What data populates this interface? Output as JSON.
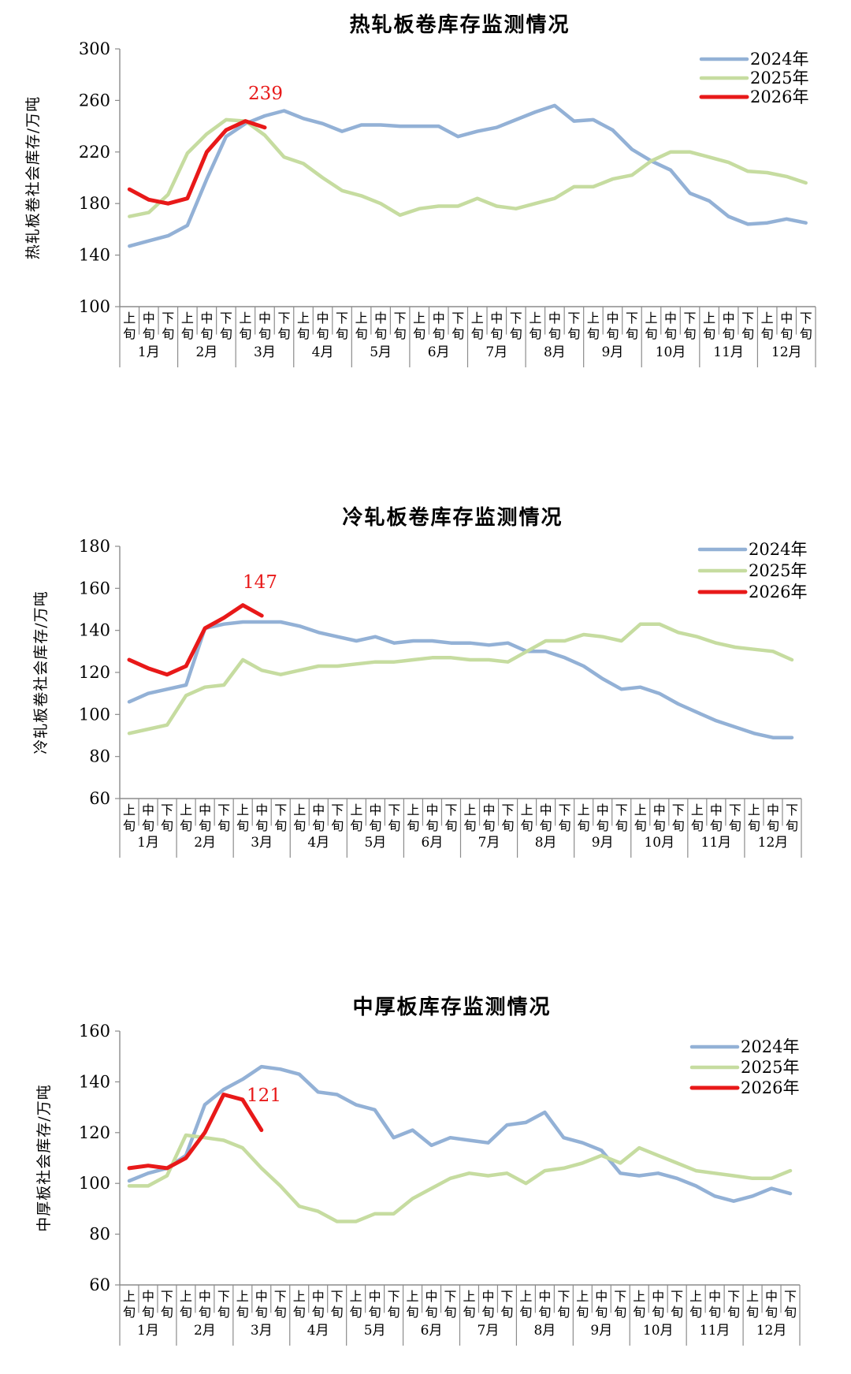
{
  "x_axis": {
    "sub_labels": [
      "上\n旬",
      "中\n旬",
      "下\n旬"
    ],
    "months": [
      "1月",
      "2月",
      "3月",
      "4月",
      "5月",
      "6月",
      "7月",
      "8月",
      "9月",
      "10月",
      "11月",
      "12月"
    ]
  },
  "series_colors": {
    "2024年": "#93b1d6",
    "2025年": "#c6dca0",
    "2026年": "#e81919"
  },
  "chart_data": [
    {
      "type": "line",
      "title": "热轧板卷库存监测情况",
      "ylabel": "热轧板卷社会库存/万吨",
      "ylim": [
        100,
        300
      ],
      "yticks": [
        100,
        140,
        180,
        220,
        260,
        300
      ],
      "grid": false,
      "legend_position": "top-right",
      "callout": {
        "series": "2026年",
        "value": "239"
      },
      "series": [
        {
          "name": "2024年",
          "values": [
            147,
            151,
            155,
            163,
            199,
            232,
            242,
            248,
            252,
            246,
            242,
            236,
            241,
            241,
            240,
            240,
            240,
            232,
            236,
            239,
            245,
            251,
            256,
            244,
            245,
            237,
            222,
            213,
            206,
            188,
            182,
            170,
            164,
            165,
            168,
            165
          ]
        },
        {
          "name": "2025年",
          "values": [
            170,
            173,
            187,
            219,
            234,
            245,
            244,
            233,
            216,
            211,
            200,
            190,
            186,
            180,
            171,
            176,
            178,
            178,
            184,
            178,
            176,
            180,
            184,
            193,
            193,
            199,
            202,
            213,
            220,
            220,
            216,
            212,
            205,
            204,
            201,
            196
          ]
        },
        {
          "name": "2026年",
          "values": [
            191,
            183,
            180,
            184,
            220,
            237,
            244,
            239
          ]
        }
      ]
    },
    {
      "type": "line",
      "title": "冷轧板卷库存监测情况",
      "ylabel": "冷轧板卷社会库存/万吨",
      "ylim": [
        60,
        180
      ],
      "yticks": [
        60,
        80,
        100,
        120,
        140,
        160,
        180
      ],
      "grid": false,
      "legend_position": "top-right",
      "callout": {
        "series": "2026年",
        "value": "147"
      },
      "series": [
        {
          "name": "2024年",
          "values": [
            106,
            110,
            112,
            114,
            141,
            143,
            144,
            144,
            144,
            142,
            139,
            137,
            135,
            137,
            134,
            135,
            135,
            134,
            134,
            133,
            134,
            130,
            130,
            127,
            123,
            117,
            112,
            113,
            110,
            105,
            101,
            97,
            94,
            91,
            89,
            89
          ]
        },
        {
          "name": "2025年",
          "values": [
            91,
            93,
            95,
            109,
            113,
            114,
            126,
            121,
            119,
            121,
            123,
            123,
            124,
            125,
            125,
            126,
            127,
            127,
            126,
            126,
            125,
            130,
            135,
            135,
            138,
            137,
            135,
            143,
            143,
            139,
            137,
            134,
            132,
            131,
            130,
            126
          ]
        },
        {
          "name": "2026年",
          "values": [
            126,
            122,
            119,
            123,
            141,
            146,
            152,
            147
          ]
        }
      ]
    },
    {
      "type": "line",
      "title": "中厚板库存监测情况",
      "ylabel": "中厚板社会库存/万吨",
      "ylim": [
        60,
        160
      ],
      "yticks": [
        60,
        80,
        100,
        120,
        140,
        160
      ],
      "grid": false,
      "legend_position": "top-right",
      "callout": {
        "series": "2026年",
        "value": "121"
      },
      "series": [
        {
          "name": "2024年",
          "values": [
            101,
            104,
            106,
            111,
            131,
            137,
            141,
            146,
            145,
            143,
            136,
            135,
            131,
            129,
            118,
            121,
            115,
            118,
            117,
            116,
            123,
            124,
            128,
            118,
            116,
            113,
            104,
            103,
            104,
            102,
            99,
            95,
            93,
            95,
            98,
            96
          ]
        },
        {
          "name": "2025年",
          "values": [
            99,
            99,
            103,
            119,
            118,
            117,
            114,
            106,
            99,
            91,
            89,
            85,
            85,
            88,
            88,
            94,
            98,
            102,
            104,
            103,
            104,
            100,
            105,
            106,
            108,
            111,
            108,
            114,
            111,
            108,
            105,
            104,
            103,
            102,
            102,
            105
          ]
        },
        {
          "name": "2026年",
          "values": [
            106,
            107,
            106,
            110,
            120,
            135,
            133,
            121
          ]
        }
      ]
    }
  ]
}
